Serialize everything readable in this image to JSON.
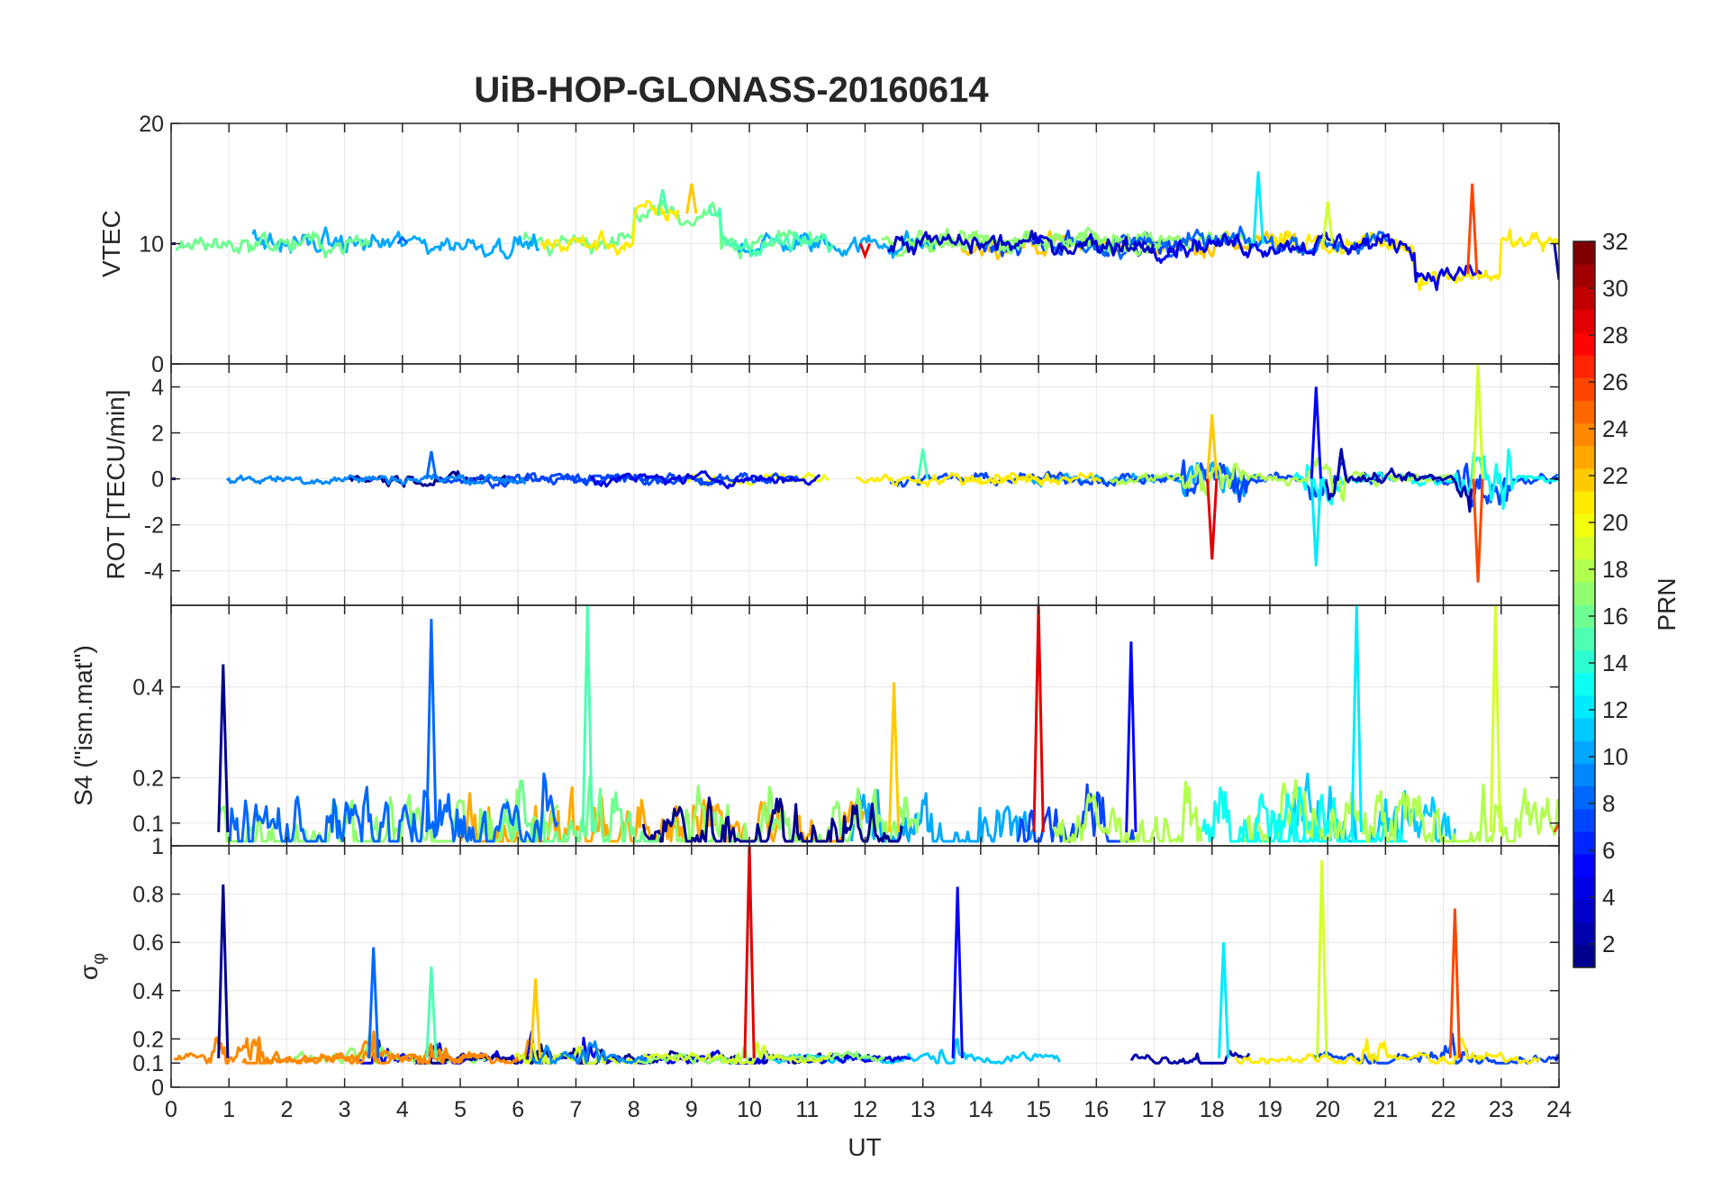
{
  "title": "UiB-HOP-GLONASS-20160614",
  "colors": {
    "jet_stops": [
      "#00008f",
      "#0000ff",
      "#0080ff",
      "#00ffff",
      "#80ff80",
      "#ffff00",
      "#ff8000",
      "#ff0000",
      "#800000"
    ],
    "axis": "#262626",
    "grid": "#e6e6e6"
  },
  "chart_data": [
    {
      "type": "line",
      "panel": "VTEC",
      "ylabel": "VTEC",
      "ylim": [
        0,
        20
      ],
      "yticks": [
        0,
        10,
        20
      ],
      "xlim": [
        0,
        24
      ],
      "xticks": [],
      "grid": true,
      "series_hint": "many PRN traces colored by PRN (1-32)",
      "key_points": [
        [
          0,
          10
        ],
        [
          4,
          10.5
        ],
        [
          8.5,
          14.5
        ],
        [
          9,
          15
        ],
        [
          12,
          9
        ],
        [
          15,
          10.5
        ],
        [
          18.8,
          16
        ],
        [
          20,
          13.5
        ],
        [
          22.5,
          15
        ],
        [
          24,
          7
        ]
      ]
    },
    {
      "type": "line",
      "panel": "ROT",
      "ylabel": "ROT [TECU/min]",
      "ylim": [
        -5.5,
        5
      ],
      "yticks": [
        -4,
        -2,
        0,
        2,
        4
      ],
      "xlim": [
        0,
        24
      ],
      "xticks": [],
      "grid": true,
      "key_points": [
        [
          0,
          0
        ],
        [
          4.5,
          1.2
        ],
        [
          13,
          1.3
        ],
        [
          18,
          2.8
        ],
        [
          18,
          -3.5
        ],
        [
          19.8,
          4
        ],
        [
          19.8,
          -3.8
        ],
        [
          22.6,
          5
        ],
        [
          22.6,
          -4.5
        ],
        [
          24,
          0
        ]
      ]
    },
    {
      "type": "line",
      "panel": "S4",
      "ylabel": "S4 (\"ism.mat\")",
      "ylim": [
        0.05,
        0.58
      ],
      "yticks": [
        0.1,
        0.2,
        0.4
      ],
      "xlim": [
        0,
        24
      ],
      "xticks": [],
      "grid": true,
      "key_points": [
        [
          0.9,
          0.45
        ],
        [
          4.5,
          0.55
        ],
        [
          7.2,
          0.58
        ],
        [
          12.5,
          0.41
        ],
        [
          15,
          0.58
        ],
        [
          16.6,
          0.5
        ],
        [
          20.5,
          0.58
        ],
        [
          22.9,
          0.58
        ],
        [
          24,
          0.1
        ]
      ]
    },
    {
      "type": "line",
      "panel": "sigma_phi",
      "ylabel": "σ",
      "ylabel_sub": "φ",
      "ylim": [
        0,
        1
      ],
      "yticks": [
        0,
        0.1,
        0.2,
        0.4,
        0.6,
        0.8,
        1
      ],
      "xlim": [
        0,
        24
      ],
      "xticks": [
        "0",
        "1",
        "2",
        "3",
        "4",
        "5",
        "6",
        "7",
        "8",
        "9",
        "10",
        "11",
        "12",
        "13",
        "14",
        "15",
        "16",
        "17",
        "18",
        "19",
        "20",
        "21",
        "22",
        "23",
        "24"
      ],
      "xlabel": "UT",
      "grid": true,
      "key_points": [
        [
          0.9,
          0.84
        ],
        [
          3.5,
          0.58
        ],
        [
          4.5,
          0.5
        ],
        [
          6.3,
          0.45
        ],
        [
          10,
          1.0
        ],
        [
          13.6,
          0.83
        ],
        [
          18.2,
          0.6
        ],
        [
          19.9,
          0.94
        ],
        [
          22.2,
          0.74
        ],
        [
          24,
          0.12
        ]
      ]
    }
  ],
  "colorbar": {
    "label": "PRN",
    "range": [
      1,
      32
    ],
    "ticks": [
      "2",
      "4",
      "6",
      "8",
      "10",
      "12",
      "14",
      "16",
      "18",
      "20",
      "22",
      "24",
      "26",
      "28",
      "30",
      "32"
    ]
  }
}
